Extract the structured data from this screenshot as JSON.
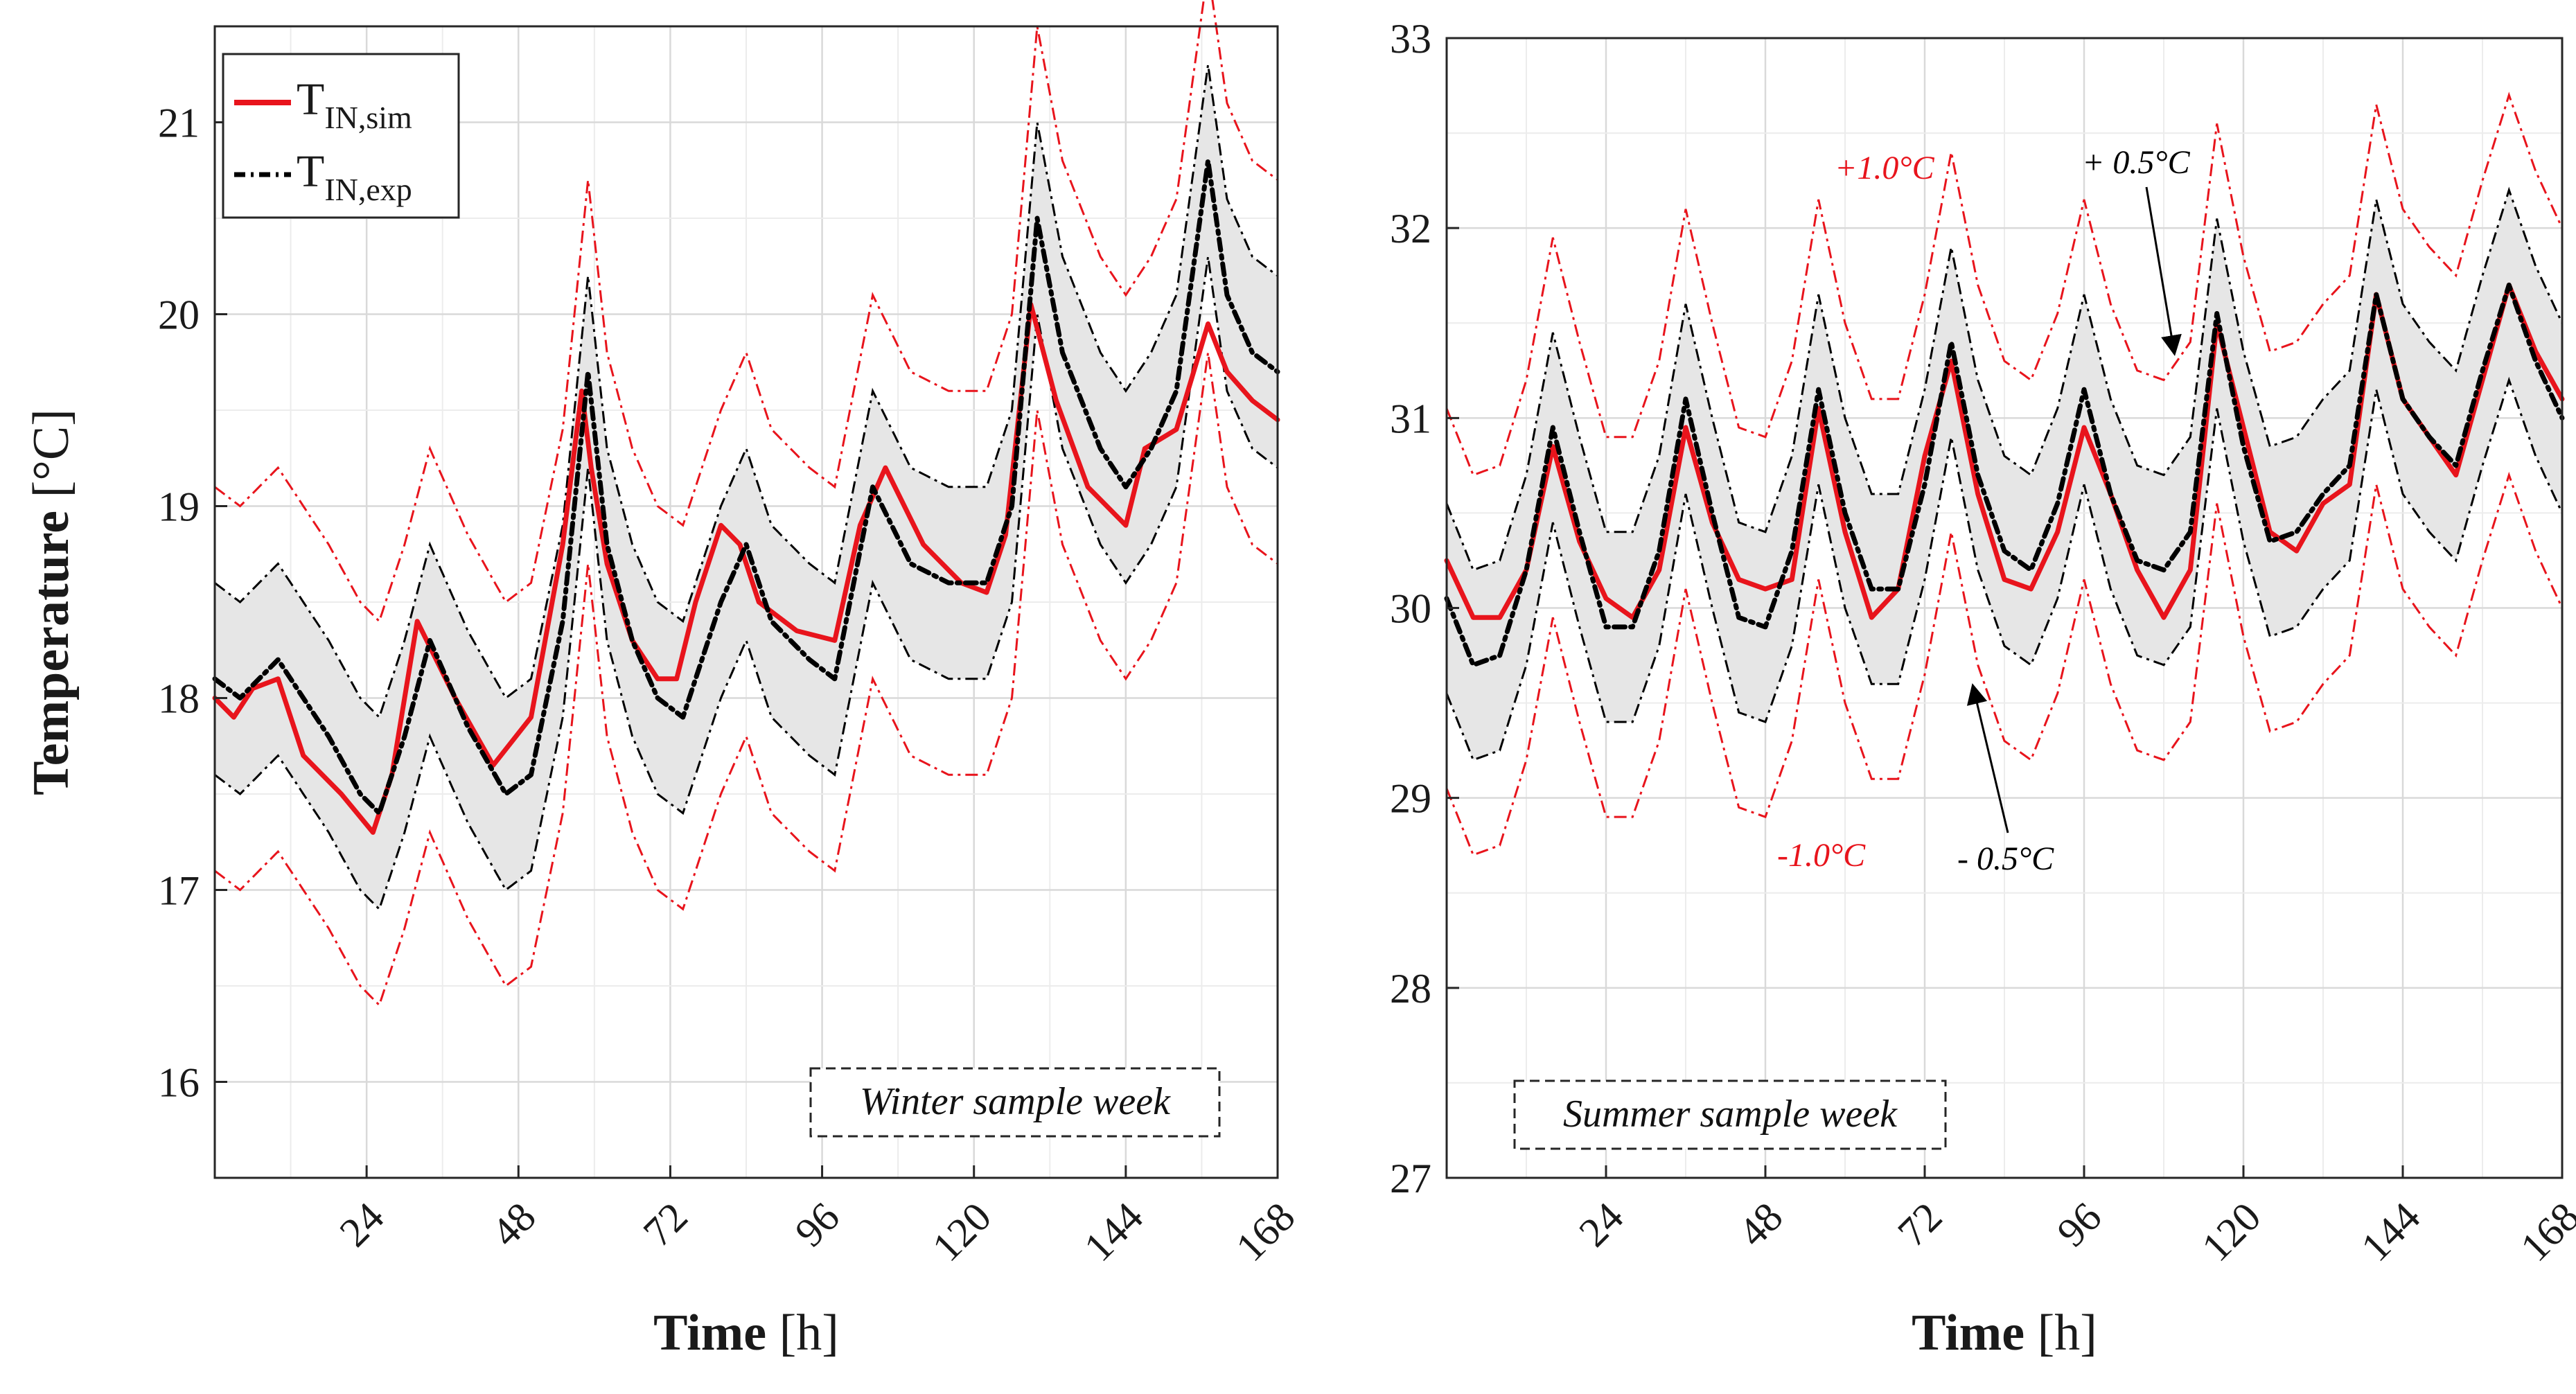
{
  "chart_data": [
    {
      "type": "line",
      "panel": "winter",
      "xlabel": "Time",
      "xlabel_unit": "[h]",
      "ylabel": "Temperature",
      "ylabel_unit": "[°C]",
      "xlim": [
        0,
        168
      ],
      "ylim": [
        15.5,
        21.5
      ],
      "xticks": [
        24,
        48,
        72,
        96,
        120,
        144,
        168
      ],
      "yticks": [
        16,
        17,
        18,
        19,
        20,
        21
      ],
      "box_label": "Winter sample week",
      "legend": {
        "placement": "top-left",
        "entries": [
          {
            "main": "T",
            "sub": "IN,sim",
            "color": "#e8141c",
            "style": "solid"
          },
          {
            "main": "T",
            "sub": "IN,exp",
            "color": "#000000",
            "style": "dashdot"
          }
        ]
      },
      "series": [
        {
          "name": "T_IN,sim",
          "color": "#e8141c",
          "x": [
            0,
            3,
            6,
            10,
            14,
            20,
            25,
            28,
            32,
            38,
            44,
            50,
            55,
            58,
            59.5,
            62,
            66,
            70,
            73,
            76,
            80,
            83,
            86,
            92,
            98,
            102,
            106,
            112,
            118,
            122,
            125,
            129,
            133,
            138,
            144,
            147,
            152,
            157,
            160,
            164,
            168
          ],
          "values": [
            18.0,
            17.9,
            18.05,
            18.1,
            17.7,
            17.5,
            17.3,
            17.6,
            18.4,
            18.0,
            17.65,
            17.9,
            18.8,
            19.6,
            19.2,
            18.7,
            18.3,
            18.1,
            18.1,
            18.5,
            18.9,
            18.8,
            18.5,
            18.35,
            18.3,
            18.9,
            19.2,
            18.8,
            18.6,
            18.55,
            18.85,
            20.05,
            19.55,
            19.1,
            18.9,
            19.3,
            19.4,
            19.95,
            19.7,
            19.55,
            19.45
          ]
        },
        {
          "name": "T_IN,exp",
          "color": "#000000",
          "x": [
            0,
            4,
            10,
            14,
            18,
            23,
            26,
            30,
            34,
            40,
            46,
            50,
            55,
            59,
            62,
            66,
            70,
            74,
            80,
            84,
            88,
            94,
            98,
            104,
            110,
            116,
            122,
            126,
            130,
            134,
            140,
            144,
            148,
            152,
            157,
            160,
            164,
            168
          ],
          "values": [
            18.1,
            18.0,
            18.2,
            18.0,
            17.8,
            17.5,
            17.4,
            17.8,
            18.3,
            17.85,
            17.5,
            17.6,
            18.4,
            19.7,
            18.8,
            18.3,
            18.0,
            17.9,
            18.5,
            18.8,
            18.4,
            18.2,
            18.1,
            19.1,
            18.7,
            18.6,
            18.6,
            19.0,
            20.5,
            19.8,
            19.3,
            19.1,
            19.3,
            19.6,
            20.8,
            20.1,
            19.8,
            19.7
          ]
        }
      ],
      "bands": [
        {
          "label": "±0.5°C",
          "offset": 0.5,
          "ref": "T_IN,exp",
          "color": "#000000"
        },
        {
          "label": "±1.0°C",
          "offset": 1.0,
          "ref": "T_IN,exp",
          "color": "#e8141c"
        }
      ]
    },
    {
      "type": "line",
      "panel": "summer",
      "xlabel": "Time",
      "xlabel_unit": "[h]",
      "xlim": [
        0,
        168
      ],
      "ylim": [
        27,
        33
      ],
      "xticks": [
        24,
        48,
        72,
        96,
        120,
        144,
        168
      ],
      "yticks": [
        27,
        28,
        29,
        30,
        31,
        32,
        33
      ],
      "box_label": "Summer sample week",
      "annotations": {
        "plus1": "+1.0°C",
        "minus1": "-1.0°C",
        "plus05": "+ 0.5°C",
        "minus05": "- 0.5°C"
      },
      "series": [
        {
          "name": "T_IN,sim",
          "color": "#e8141c",
          "x": [
            0,
            4,
            8,
            12,
            16,
            20,
            24,
            28,
            32,
            36,
            40,
            44,
            48,
            52,
            56,
            60,
            64,
            68,
            72,
            76,
            80,
            84,
            88,
            92,
            96,
            100,
            104,
            108,
            112,
            116,
            120,
            124,
            128,
            132,
            136,
            140,
            144,
            148,
            152,
            156,
            160,
            164,
            168
          ],
          "values": [
            30.25,
            29.95,
            29.95,
            30.2,
            30.85,
            30.35,
            30.05,
            29.95,
            30.2,
            30.95,
            30.45,
            30.15,
            30.1,
            30.15,
            31.05,
            30.4,
            29.95,
            30.1,
            30.8,
            31.3,
            30.6,
            30.15,
            30.1,
            30.4,
            30.95,
            30.6,
            30.2,
            29.95,
            30.2,
            31.5,
            30.95,
            30.4,
            30.3,
            30.55,
            30.65,
            31.65,
            31.1,
            30.9,
            30.7,
            31.2,
            31.7,
            31.35,
            31.1
          ]
        },
        {
          "name": "T_IN,exp",
          "color": "#000000",
          "x": [
            0,
            4,
            8,
            12,
            16,
            20,
            24,
            28,
            32,
            36,
            40,
            44,
            48,
            52,
            56,
            60,
            64,
            68,
            72,
            76,
            80,
            84,
            88,
            92,
            96,
            100,
            104,
            108,
            112,
            116,
            120,
            124,
            128,
            132,
            136,
            140,
            144,
            148,
            152,
            156,
            160,
            164,
            168
          ],
          "values": [
            30.05,
            29.7,
            29.75,
            30.2,
            30.95,
            30.4,
            29.9,
            29.9,
            30.3,
            31.1,
            30.5,
            29.95,
            29.9,
            30.3,
            31.15,
            30.5,
            30.1,
            30.1,
            30.65,
            31.4,
            30.7,
            30.3,
            30.2,
            30.55,
            31.15,
            30.6,
            30.25,
            30.2,
            30.4,
            31.55,
            30.85,
            30.35,
            30.4,
            30.6,
            30.75,
            31.65,
            31.1,
            30.9,
            30.75,
            31.25,
            31.7,
            31.3,
            31.0
          ]
        }
      ],
      "bands": [
        {
          "label": "±0.5°C",
          "offset": 0.5,
          "ref": "T_IN,exp",
          "color": "#000000"
        },
        {
          "label": "±1.0°C",
          "offset": 1.0,
          "ref": "T_IN,exp",
          "color": "#e8141c"
        }
      ]
    }
  ]
}
